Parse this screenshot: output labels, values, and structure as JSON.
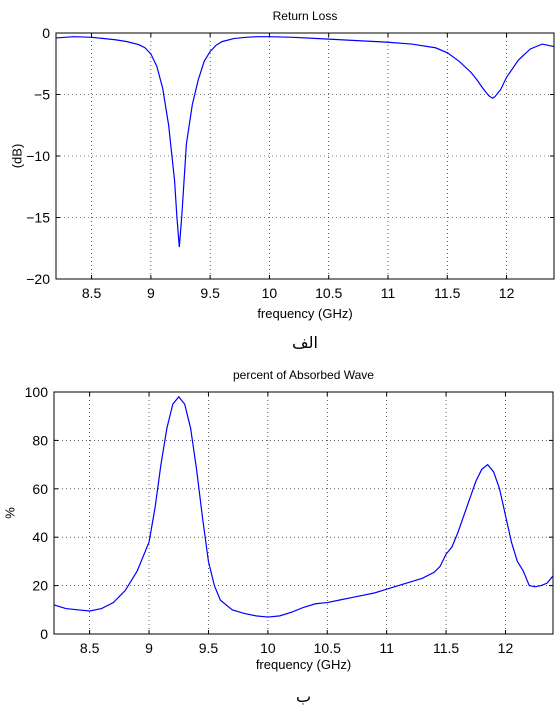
{
  "chart_data": [
    {
      "type": "line",
      "title": "Return Loss",
      "xlabel": "frequency (GHz)",
      "ylabel": "(dB)",
      "caption": "الف",
      "xlim": [
        8.2,
        12.4
      ],
      "ylim": [
        -20,
        0
      ],
      "xticks": [
        8.5,
        9,
        9.5,
        10,
        10.5,
        11,
        11.5,
        12
      ],
      "xtick_labels": [
        "8.5",
        "9",
        "9.5",
        "10",
        "10.5",
        "11",
        "11.5",
        "12"
      ],
      "yticks": [
        -20,
        -15,
        -10,
        -5,
        0
      ],
      "ytick_labels": [
        "−20",
        "−15",
        "−10",
        "−5",
        "0"
      ],
      "grid": true,
      "line_color": "#0000ff",
      "series": [
        {
          "x": [
            8.2,
            8.35,
            8.5,
            8.6,
            8.7,
            8.8,
            8.9,
            8.95,
            9.0,
            9.05,
            9.1,
            9.15,
            9.2,
            9.22,
            9.24,
            9.26,
            9.28,
            9.3,
            9.35,
            9.4,
            9.45,
            9.5,
            9.55,
            9.6,
            9.7,
            9.8,
            9.9,
            10.0,
            10.2,
            10.4,
            10.6,
            10.8,
            11.0,
            11.2,
            11.4,
            11.5,
            11.6,
            11.7,
            11.75,
            11.8,
            11.85,
            11.88,
            11.9,
            11.95,
            12.0,
            12.1,
            12.2,
            12.3,
            12.4
          ],
          "y": [
            -0.4,
            -0.3,
            -0.35,
            -0.45,
            -0.55,
            -0.7,
            -0.95,
            -1.2,
            -1.7,
            -2.7,
            -4.5,
            -7.5,
            -12.0,
            -15.0,
            -17.4,
            -15.0,
            -12.0,
            -9.0,
            -5.8,
            -3.8,
            -2.3,
            -1.5,
            -1.0,
            -0.7,
            -0.45,
            -0.35,
            -0.3,
            -0.3,
            -0.35,
            -0.45,
            -0.55,
            -0.65,
            -0.75,
            -0.9,
            -1.2,
            -1.6,
            -2.3,
            -3.2,
            -3.8,
            -4.5,
            -5.1,
            -5.3,
            -5.2,
            -4.6,
            -3.6,
            -2.2,
            -1.3,
            -0.9,
            -1.1
          ]
        }
      ]
    },
    {
      "type": "line",
      "title": "percent of Absorbed Wave",
      "xlabel": "frequency (GHz)",
      "ylabel": "%",
      "caption": "ب",
      "xlim": [
        8.2,
        12.4
      ],
      "ylim": [
        0,
        100
      ],
      "xticks": [
        8.5,
        9,
        9.5,
        10,
        10.5,
        11,
        11.5,
        12
      ],
      "xtick_labels": [
        "8.5",
        "9",
        "9.5",
        "10",
        "10.5",
        "11",
        "11.5",
        "12"
      ],
      "yticks": [
        0,
        20,
        40,
        60,
        80,
        100
      ],
      "ytick_labels": [
        "0",
        "20",
        "40",
        "60",
        "80",
        "100"
      ],
      "grid": true,
      "line_color": "#0000ff",
      "series": [
        {
          "x": [
            8.2,
            8.3,
            8.4,
            8.5,
            8.6,
            8.7,
            8.8,
            8.9,
            9.0,
            9.05,
            9.1,
            9.15,
            9.2,
            9.25,
            9.3,
            9.35,
            9.4,
            9.45,
            9.5,
            9.55,
            9.6,
            9.7,
            9.8,
            9.9,
            10.0,
            10.1,
            10.2,
            10.3,
            10.4,
            10.5,
            10.6,
            10.7,
            10.8,
            10.9,
            11.0,
            11.1,
            11.2,
            11.3,
            11.4,
            11.45,
            11.5,
            11.55,
            11.6,
            11.65,
            11.7,
            11.75,
            11.8,
            11.85,
            11.9,
            11.95,
            12.0,
            12.05,
            12.1,
            12.15,
            12.2,
            12.25,
            12.3,
            12.35,
            12.4
          ],
          "y": [
            12,
            10.5,
            10,
            9.5,
            10.5,
            13,
            18,
            26,
            38,
            52,
            70,
            85,
            95,
            98,
            95,
            85,
            68,
            48,
            30,
            20,
            14,
            10,
            8.5,
            7.5,
            7,
            7.5,
            9,
            11,
            12.5,
            13,
            14,
            15,
            16,
            17,
            18.5,
            20,
            21.5,
            23,
            25.5,
            28,
            33,
            36,
            42,
            49,
            56,
            63,
            68,
            70,
            67,
            60,
            49,
            38,
            30,
            26,
            20,
            19.5,
            20,
            21,
            24
          ]
        }
      ]
    }
  ]
}
